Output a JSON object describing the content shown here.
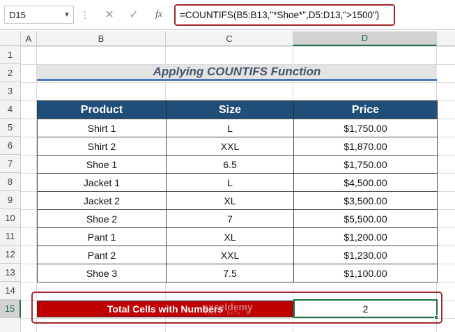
{
  "name_box": "D15",
  "formula_bar": {
    "fx": "fx",
    "formula": "=COUNTIFS(B5:B13,\"*Shoe*\",D5:D13,\">1500\")"
  },
  "columns": [
    "A",
    "B",
    "C",
    "D"
  ],
  "rows": [
    "1",
    "2",
    "3",
    "4",
    "5",
    "6",
    "7",
    "8",
    "9",
    "10",
    "11",
    "12",
    "13",
    "14",
    "15"
  ],
  "title": "Applying COUNTIFS Function",
  "table": {
    "header": [
      "Product",
      "Size",
      "Price"
    ],
    "rows": [
      [
        "Shirt 1",
        "L",
        "$1,750.00"
      ],
      [
        "Shirt 2",
        "XXL",
        "$1,870.00"
      ],
      [
        "Shoe 1",
        "6.5",
        "$1,750.00"
      ],
      [
        "Jacket 1",
        "L",
        "$4,500.00"
      ],
      [
        "Jacket 2",
        "XL",
        "$3,500.00"
      ],
      [
        "Shoe 2",
        "7",
        "$5,500.00"
      ],
      [
        "Pant 1",
        "XL",
        "$1,200.00"
      ],
      [
        "Pant 2",
        "XXL",
        "$1,230.00"
      ],
      [
        "Shoe 3",
        "7.5",
        "$1,100.00"
      ]
    ]
  },
  "summary": {
    "label": "Total Cells with Numbers",
    "value": "2"
  },
  "watermark": {
    "name": "exceldemy",
    "tagline": "EXCEL · DATA · BI"
  }
}
